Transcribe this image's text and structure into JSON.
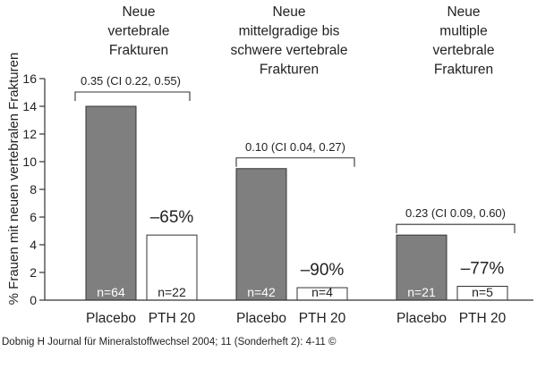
{
  "chart_data": {
    "type": "bar",
    "ylabel": "% Frauen mit neuen vertebralen Frakturen",
    "ylim": [
      0,
      16
    ],
    "yticks": [
      0,
      2,
      4,
      6,
      8,
      10,
      12,
      14,
      16
    ],
    "grid": false,
    "groups": [
      {
        "title": [
          "Neue",
          "vertebrale",
          "Frakturen"
        ],
        "ci_label": "0.35 (CI  0.22, 0.55)",
        "reduction_label": "–65%",
        "bars": [
          {
            "category": "Placebo",
            "value": 14.0,
            "n_label": "n=64",
            "style": "filled"
          },
          {
            "category": "PTH 20",
            "value": 4.7,
            "n_label": "n=22",
            "style": "open"
          }
        ]
      },
      {
        "title": [
          "Neue",
          "mittelgradige bis",
          "schwere vertebrale",
          "Frakturen"
        ],
        "ci_label": "0.10 (CI 0.04, 0.27)",
        "reduction_label": "–90%",
        "bars": [
          {
            "category": "Placebo",
            "value": 9.5,
            "n_label": "n=42",
            "style": "filled"
          },
          {
            "category": "PTH 20",
            "value": 0.9,
            "n_label": "n=4",
            "style": "open"
          }
        ]
      },
      {
        "title": [
          "Neue",
          "multiple",
          "vertebrale",
          "Frakturen"
        ],
        "ci_label": "0.23 (CI 0.09, 0.60)",
        "reduction_label": "–77%",
        "bars": [
          {
            "category": "Placebo",
            "value": 4.7,
            "n_label": "n=21",
            "style": "filled"
          },
          {
            "category": "PTH 20",
            "value": 1.0,
            "n_label": "n=5",
            "style": "open"
          }
        ]
      }
    ]
  },
  "citation": "Dobnig H Journal für Mineralstoffwechsel 2004; 11 (Sonderheft 2): 4-11 ©",
  "colors": {
    "filled_bar": "#7f7f7f",
    "open_bar": "#ffffff",
    "bar_stroke": "#333333",
    "axis": "#333333",
    "text": "#222222",
    "n_label_on_filled": "#ffffff",
    "n_label_on_open": "#222222"
  }
}
